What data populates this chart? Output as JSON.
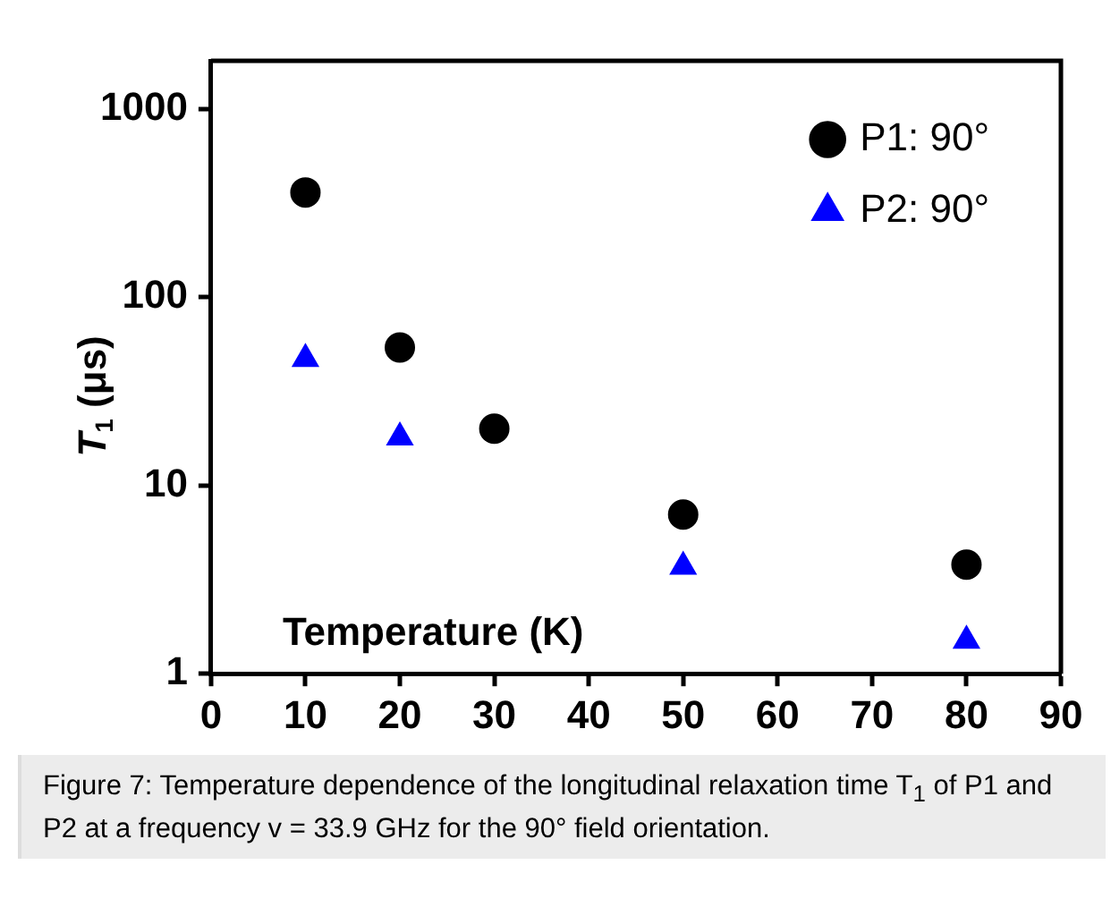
{
  "chart_data": {
    "type": "scatter",
    "xlabel": "Temperature (K)",
    "ylabel": "T$_{1}$ (μs)",
    "x": [
      10,
      20,
      30,
      50,
      80
    ],
    "series": [
      {
        "name": "P1: 90°",
        "color": "#000000",
        "marker": "circle",
        "values": [
          360,
          54,
          20,
          7,
          3.8
        ]
      },
      {
        "name": "P2: 90°",
        "color": "#0000ff",
        "marker": "triangle",
        "values": [
          47,
          18,
          null,
          3.7,
          1.5
        ]
      }
    ],
    "log": "y",
    "xlim": [
      0,
      90
    ],
    "xticks": [
      0,
      10,
      20,
      30,
      40,
      50,
      60,
      70,
      80,
      90
    ],
    "ylim": [
      1,
      1800
    ],
    "yticks": [
      1,
      10,
      100,
      1000
    ],
    "grid": false,
    "legend": "top right",
    "annotations": [
      "Figure 7: Temperature dependence of the longitudinal relaxation time T$_{1}$ of P1 and P2 at a frequency v = 33.9 GHz for the 90° field orientation."
    ]
  }
}
